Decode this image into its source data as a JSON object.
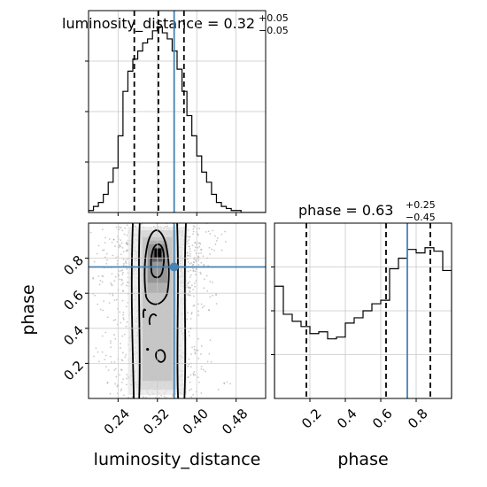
{
  "chart_data": {
    "type": "corner",
    "parameters": [
      "luminosity_distance",
      "phase"
    ],
    "colors": {
      "truth": "#4682b4",
      "hist": "#000000",
      "quantile": "#000000",
      "grid": "#c8c8c8",
      "scatter": "#9a9a9a"
    },
    "luminosity_distance_hist": {
      "title_name": "luminosity_distance",
      "title_value": "0.32",
      "title_upper": "+0.05",
      "title_lower": "−0.05",
      "xlim": [
        0.18,
        0.54
      ],
      "ylim": [
        0,
        100
      ],
      "bin_edges": [
        0.18,
        0.19,
        0.2,
        0.21,
        0.22,
        0.23,
        0.24,
        0.25,
        0.26,
        0.27,
        0.28,
        0.29,
        0.3,
        0.31,
        0.32,
        0.33,
        0.34,
        0.35,
        0.36,
        0.37,
        0.38,
        0.39,
        0.4,
        0.41,
        0.42,
        0.43,
        0.44,
        0.45,
        0.46,
        0.47,
        0.48,
        0.49,
        0.5,
        0.51,
        0.52,
        0.53,
        0.54
      ],
      "counts": [
        1,
        3,
        5,
        9,
        15,
        22,
        38,
        60,
        70,
        76,
        80,
        84,
        86,
        90,
        92,
        89,
        86,
        80,
        71,
        60,
        48,
        38,
        28,
        20,
        15,
        9,
        5,
        3,
        2,
        1,
        1,
        0,
        0,
        0,
        0,
        0
      ],
      "quantiles": [
        0.273,
        0.322,
        0.374
      ],
      "truth": 0.354,
      "tick_values": [
        0.24,
        0.32,
        0.4,
        0.48
      ],
      "tick_labels": [
        "0.24",
        "0.32",
        "0.40",
        "0.48"
      ],
      "grid": true
    },
    "phase_hist": {
      "title_name": "phase",
      "title_value": "0.63",
      "title_upper": "+0.25",
      "title_lower": "−0.45",
      "xlim": [
        0,
        1
      ],
      "ylim": [
        0,
        100
      ],
      "bin_edges": [
        0,
        0.05,
        0.1,
        0.15,
        0.2,
        0.25,
        0.3,
        0.35,
        0.4,
        0.45,
        0.5,
        0.55,
        0.6,
        0.65,
        0.7,
        0.75,
        0.8,
        0.85,
        0.9,
        0.95,
        1.0
      ],
      "counts": [
        64,
        48,
        44,
        41,
        37,
        38,
        34,
        35,
        43,
        46,
        50,
        54,
        56,
        74,
        80,
        85,
        83,
        86,
        84,
        73
      ],
      "quantiles": [
        0.18,
        0.63,
        0.88
      ],
      "truth": 0.75,
      "tick_values": [
        0.2,
        0.4,
        0.6,
        0.8
      ],
      "tick_labels": [
        "0.2",
        "0.4",
        "0.6",
        "0.8"
      ],
      "xlabel": "phase",
      "grid": true
    },
    "joint": {
      "x_param": "luminosity_distance",
      "y_param": "phase",
      "xlim": [
        0.18,
        0.54
      ],
      "ylim": [
        0,
        1
      ],
      "x_tick_values": [
        0.24,
        0.32,
        0.4,
        0.48
      ],
      "x_tick_labels": [
        "0.24",
        "0.32",
        "0.40",
        "0.48"
      ],
      "y_tick_values": [
        0.2,
        0.4,
        0.6,
        0.8
      ],
      "y_tick_labels": [
        "0.2",
        "0.4",
        "0.6",
        "0.8"
      ],
      "xlabel": "luminosity_distance",
      "ylabel": "phase",
      "truth_x": 0.354,
      "truth_y": 0.75,
      "peak": [
        0.32,
        0.83
      ],
      "grid": true
    }
  }
}
